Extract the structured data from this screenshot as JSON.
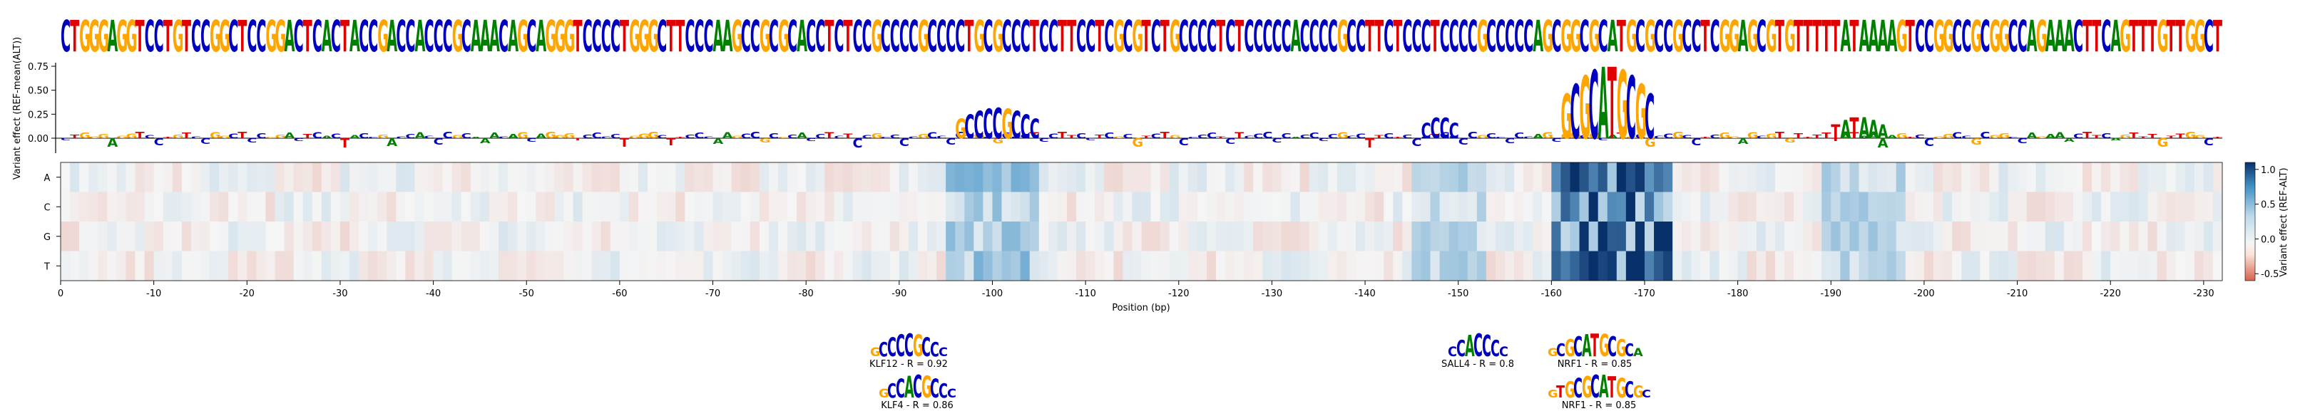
{
  "colors": {
    "A": "#008000",
    "C": "#0000c0",
    "G": "#ffa500",
    "T": "#e00000"
  },
  "top_sequence": "CTGGGAGGTCCTGTCCGGCTCCGGACTCACTACCGACCACCCGCAAACAGCAGGGTCCCCTGGGCTTCCCAAGCCGCGCACCTCTCCGCCCCGCCCCTGCGCCCTCCTTCCTCGCGTCTGCCCCTCTCCCCCACCCCGCCTTCTCCCTCCCCGCCCCCAGCGGCGCATGCGCCGCCTCGGAGCGTGTTTTTATAAAAGTCCGGCCGCGGCCAGAAACTTCAGTTTGTTGGCT",
  "chart_data": [
    {
      "type": "sequence-logo",
      "ylabel": "Variant effect\n(REF-mean(ALT))",
      "yticks": [
        "0.00",
        "0.25",
        "0.50",
        "0.75"
      ],
      "ylim": [
        -0.15,
        0.8
      ],
      "peaks": [
        {
          "start": 96,
          "end": 103,
          "height": 0.32,
          "letters": "GCCCCGCCC"
        },
        {
          "start": 146,
          "end": 151,
          "height": 0.22,
          "letters": "CCCC"
        },
        {
          "start": 161,
          "end": 171,
          "height": 0.75,
          "letters": "GCGCATGCGC"
        },
        {
          "start": 190,
          "end": 196,
          "height": 0.22,
          "letters": "TATAAA"
        }
      ]
    },
    {
      "type": "heatmap",
      "rows": [
        "A",
        "C",
        "G",
        "T"
      ],
      "xlabel": "Position (bp)",
      "xticks": [
        "0",
        "-10",
        "-20",
        "-30",
        "-40",
        "-50",
        "-60",
        "-70",
        "-80",
        "-90",
        "-100",
        "-110",
        "-120",
        "-130",
        "-140",
        "-150",
        "-160",
        "-170",
        "-180",
        "-190",
        "-200",
        "-210",
        "-220",
        "-230"
      ],
      "x_range": [
        0,
        -232
      ],
      "colorbar": {
        "label": "Variant effect\n(REF-ALT)",
        "ticks": [
          "1.0",
          "0.5",
          "0.0",
          "-0.5"
        ],
        "range": [
          -0.6,
          1.1
        ]
      }
    }
  ],
  "motifs": [
    {
      "label": "KLF12 - R = 0.92",
      "letters": "GCCCCGCCC"
    },
    {
      "label": "KLF4 - R = 0.86",
      "letters": "GCCACGCCC"
    },
    {
      "label": "SALL4 - R = 0.8",
      "letters": "CCACCCC"
    },
    {
      "label": "NRF1 - R = 0.85",
      "letters": "GCGCATGCGCA"
    },
    {
      "label": "NRF1 - R = 0.85",
      "letters": "GTGCGCATGCGC"
    }
  ]
}
